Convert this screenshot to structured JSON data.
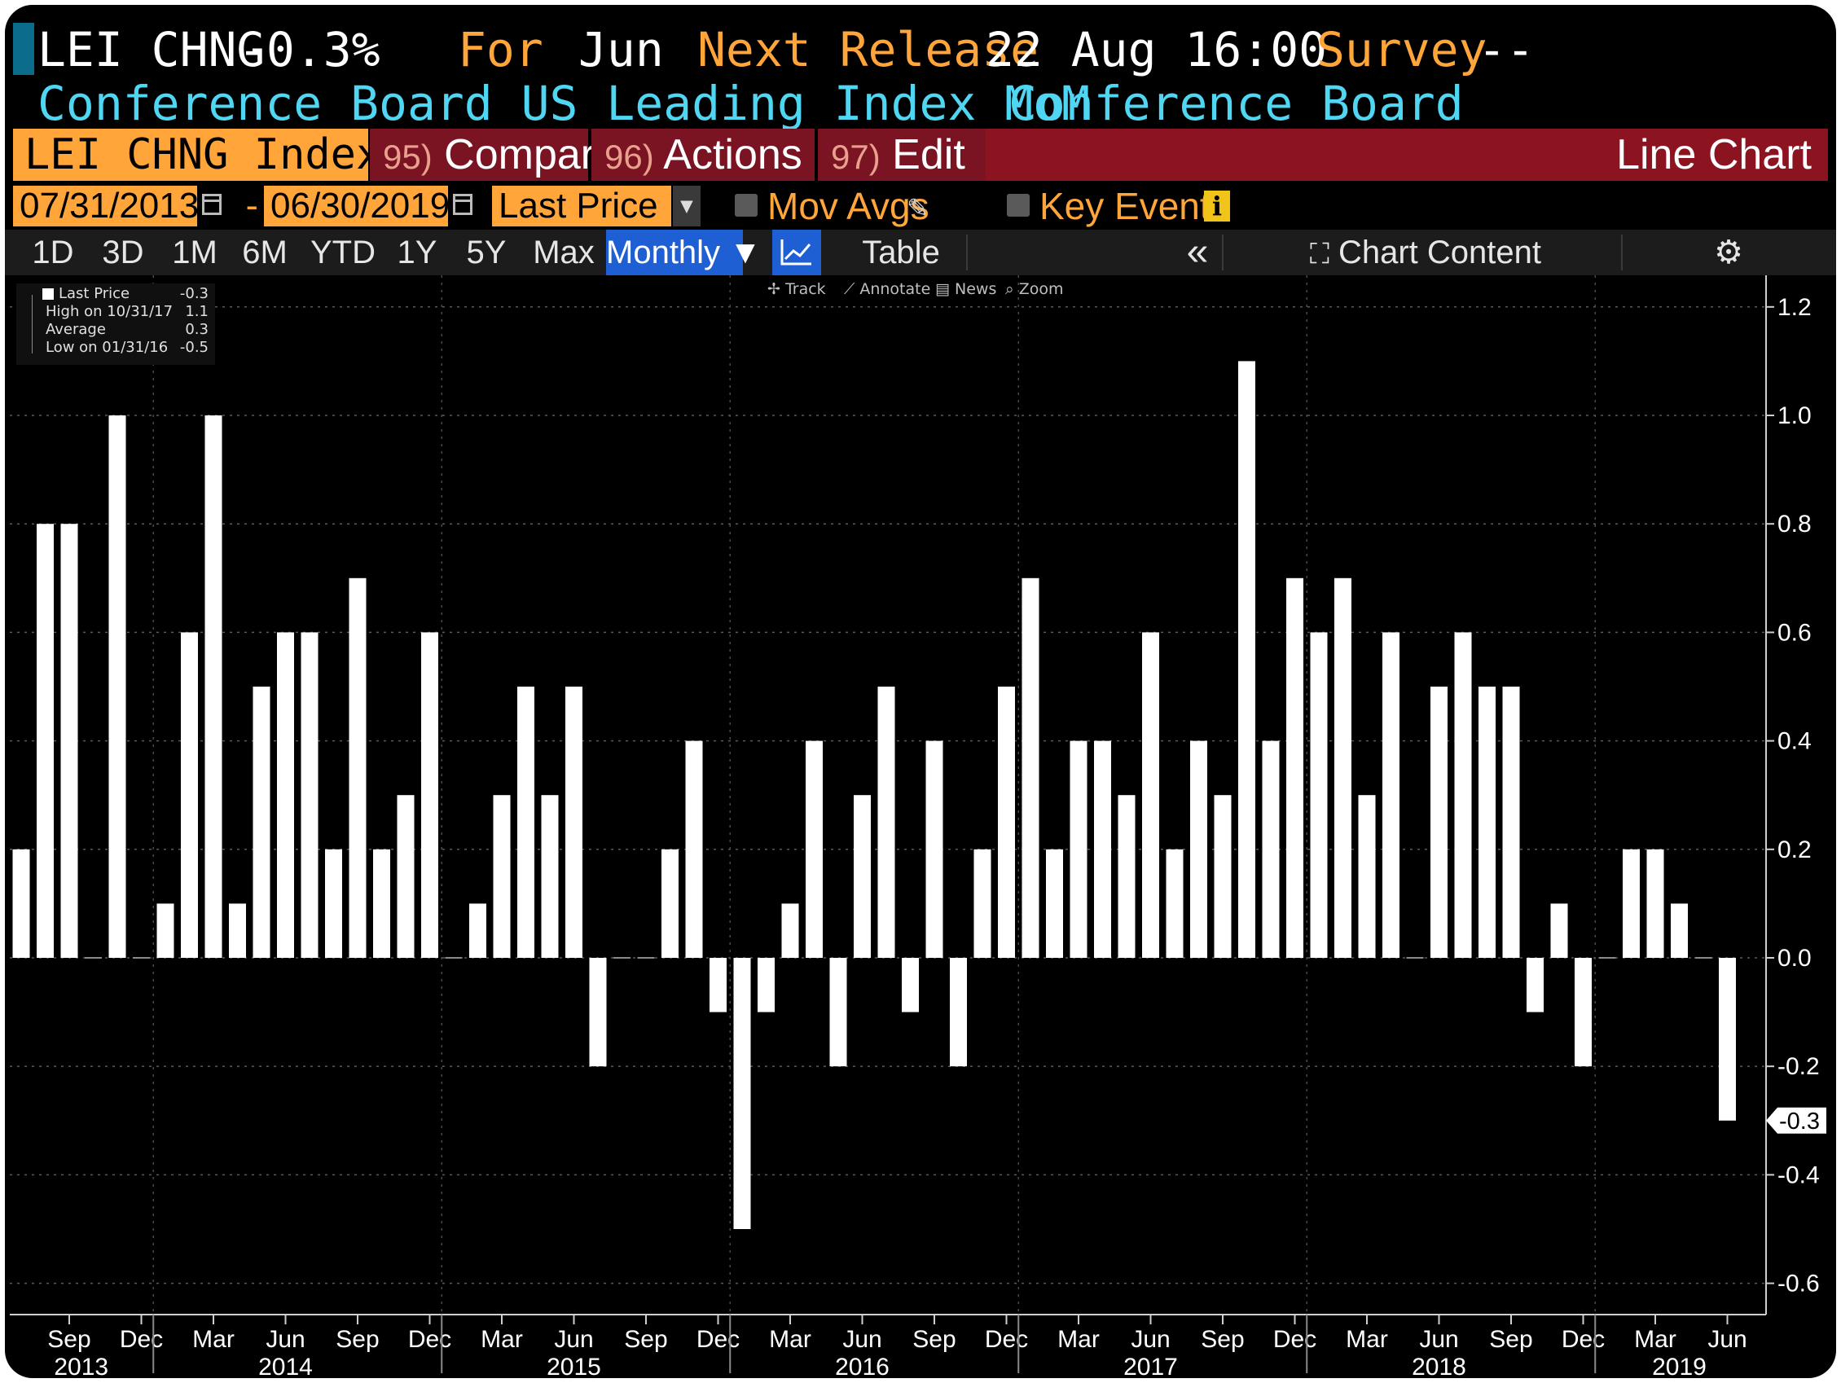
{
  "header": {
    "ticker": "LEI CHNG",
    "change": "-0.3%",
    "for_label": "For",
    "for_value": "Jun",
    "next_release_label": "Next Release",
    "next_release_value": "22 Aug 16:00",
    "survey_label": "Survey",
    "survey_value": "--",
    "description": "Conference Board US Leading Index MoM",
    "source": "Conference Board"
  },
  "toolbar": {
    "security": "LEI CHNG Index",
    "compare_num": "95)",
    "compare_label": "Compare",
    "actions_num": "96)",
    "actions_label": "Actions",
    "edit_num": "97)",
    "edit_label": "Edit",
    "chart_type": "Line Chart"
  },
  "dates": {
    "start": "07/31/2013",
    "end": "06/30/2019",
    "separator": "-",
    "field": "Last Price",
    "mov_avgs": "Mov Avgs",
    "key_events": "Key Events",
    "info_glyph": "i"
  },
  "ranges": {
    "items": [
      "1D",
      "3D",
      "1M",
      "6M",
      "YTD",
      "1Y",
      "5Y",
      "Max"
    ],
    "frequency": "Monthly ▼",
    "table": "Table",
    "collapse": "«",
    "chart_content": "Chart Content"
  },
  "tools": {
    "track": "Track",
    "annotate": "Annotate",
    "news": "News",
    "zoom": "Zoom"
  },
  "legend": [
    {
      "label": "Last Price",
      "value": "-0.3"
    },
    {
      "label": "High on 10/31/17",
      "value": "1.1"
    },
    {
      "label": "Average",
      "value": "0.3"
    },
    {
      "label": "Low on 01/31/16",
      "value": "-0.5"
    }
  ],
  "colors": {
    "background": "#000000",
    "bars": "#ffffff",
    "accent": "#ffa53a",
    "cyan": "#4fd6f2",
    "maroon": "#8c1421",
    "active": "#1f5fd4"
  },
  "chart_data": {
    "type": "bar",
    "start_month": "2013-07",
    "values": [
      0.2,
      0.8,
      0.8,
      0.0,
      1.0,
      0.0,
      0.1,
      0.6,
      1.0,
      0.1,
      0.5,
      0.6,
      0.6,
      0.2,
      0.7,
      0.2,
      0.3,
      0.6,
      0.0,
      0.1,
      0.3,
      0.5,
      0.3,
      0.5,
      -0.2,
      0.0,
      0.0,
      0.2,
      0.4,
      -0.1,
      -0.5,
      -0.1,
      0.1,
      0.4,
      -0.2,
      0.3,
      0.5,
      -0.1,
      0.4,
      -0.2,
      0.2,
      0.5,
      0.7,
      0.2,
      0.4,
      0.4,
      0.3,
      0.6,
      0.2,
      0.4,
      0.3,
      1.1,
      0.4,
      0.7,
      0.6,
      0.7,
      0.3,
      0.6,
      0.0,
      0.5,
      0.6,
      0.5,
      0.5,
      -0.1,
      0.1,
      -0.2,
      0.0,
      0.2,
      0.2,
      0.1,
      0.0,
      -0.3
    ],
    "y_ticks": [
      "1.2",
      "1.0",
      "0.8",
      "0.6",
      "0.4",
      "0.2",
      "0.0",
      "-0.2",
      "-0.4",
      "-0.6"
    ],
    "ylim": [
      -0.65,
      1.25
    ],
    "last_value_label": "-0.3",
    "x_month_labels": [
      "Sep",
      "Dec",
      "Mar",
      "Jun",
      "Sep",
      "Dec",
      "Mar",
      "Jun",
      "Sep",
      "Dec",
      "Mar",
      "Jun",
      "Sep",
      "Dec",
      "Mar",
      "Jun",
      "Sep",
      "Dec",
      "Mar",
      "Jun",
      "Sep",
      "Dec",
      "Mar",
      "Jun"
    ],
    "x_month_offsets": [
      2,
      5,
      8,
      11,
      14,
      17,
      20,
      23,
      26,
      29,
      32,
      35,
      38,
      41,
      44,
      47,
      50,
      53,
      56,
      59,
      62,
      65,
      68,
      71
    ],
    "x_year_labels": [
      "2013",
      "2014",
      "2015",
      "2016",
      "2017",
      "2018",
      "2019"
    ],
    "x_year_offsets": [
      2.5,
      11,
      23,
      35,
      47,
      59,
      69
    ],
    "year_dividers": [
      5.5,
      17.5,
      29.5,
      41.5,
      53.5,
      65.5
    ],
    "grid": true
  }
}
